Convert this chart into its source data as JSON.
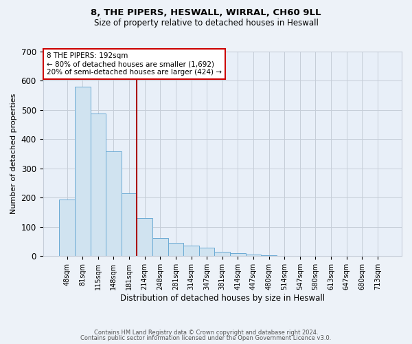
{
  "title": "8, THE PIPERS, HESWALL, WIRRAL, CH60 9LL",
  "subtitle": "Size of property relative to detached houses in Heswall",
  "xlabel": "Distribution of detached houses by size in Heswall",
  "ylabel": "Number of detached properties",
  "bar_color": "#d0e3f0",
  "bar_edge_color": "#6aaad4",
  "categories": [
    "48sqm",
    "81sqm",
    "115sqm",
    "148sqm",
    "181sqm",
    "214sqm",
    "248sqm",
    "281sqm",
    "314sqm",
    "347sqm",
    "381sqm",
    "414sqm",
    "447sqm",
    "480sqm",
    "514sqm",
    "547sqm",
    "580sqm",
    "613sqm",
    "647sqm",
    "680sqm",
    "713sqm"
  ],
  "values": [
    193,
    580,
    487,
    358,
    215,
    130,
    63,
    45,
    35,
    30,
    15,
    10,
    5,
    3,
    0,
    0,
    0,
    0,
    0,
    0,
    0
  ],
  "vline_pos": 4.5,
  "vline_color": "#aa0000",
  "annotation_title": "8 THE PIPERS: 192sqm",
  "annotation_line1": "← 80% of detached houses are smaller (1,692)",
  "annotation_line2": "20% of semi-detached houses are larger (424) →",
  "annotation_box_color": "#ffffff",
  "annotation_box_edge": "#cc0000",
  "ylim": [
    0,
    700
  ],
  "yticks": [
    0,
    100,
    200,
    300,
    400,
    500,
    600,
    700
  ],
  "footer1": "Contains HM Land Registry data © Crown copyright and database right 2024.",
  "footer2": "Contains public sector information licensed under the Open Government Licence v3.0.",
  "background_color": "#edf2f8",
  "plot_background_color": "#e8eff8",
  "grid_color": "#c5cdd8",
  "title_fontsize": 9.5,
  "subtitle_fontsize": 8.5
}
